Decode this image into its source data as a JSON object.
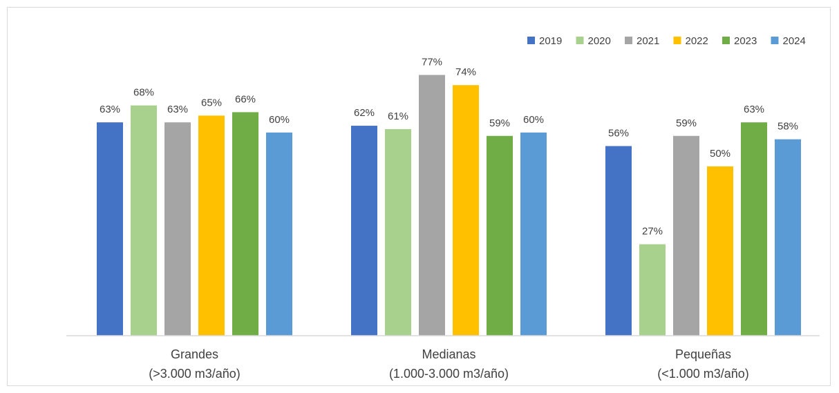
{
  "chart_data": {
    "type": "bar",
    "title": "",
    "xlabel": "",
    "ylabel": "",
    "ylim": [
      0,
      82
    ],
    "grid": false,
    "legend_position": "top-right",
    "value_format": "percent",
    "categories": [
      [
        "Grandes",
        "(>3.000 m3/año)"
      ],
      [
        "Medianas",
        "(1.000-3.000 m3/año)"
      ],
      [
        "Pequeñas",
        "(<1.000 m3/año)"
      ]
    ],
    "series": [
      {
        "name": "2019",
        "color": "#4472C4",
        "values": [
          63,
          62,
          56
        ]
      },
      {
        "name": "2020",
        "color": "#A9D18E",
        "values": [
          68,
          61,
          27
        ]
      },
      {
        "name": "2021",
        "color": "#A5A5A5",
        "values": [
          63,
          77,
          59
        ]
      },
      {
        "name": "2022",
        "color": "#FFC000",
        "values": [
          65,
          74,
          50
        ]
      },
      {
        "name": "2023",
        "color": "#70AD47",
        "values": [
          66,
          59,
          63
        ]
      },
      {
        "name": "2024",
        "color": "#5B9BD5",
        "values": [
          60,
          60,
          58
        ]
      }
    ]
  }
}
